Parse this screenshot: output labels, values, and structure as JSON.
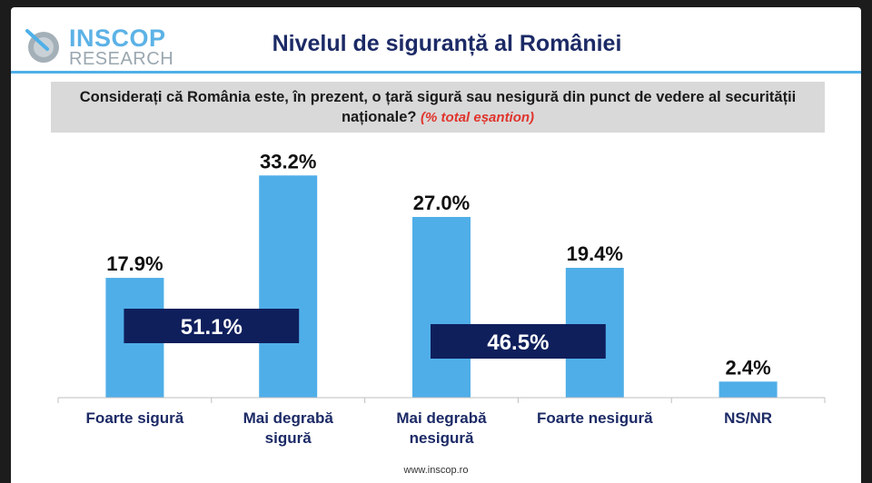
{
  "brand": {
    "name_line1": "INSCOP",
    "name_line2": "RESEARCH",
    "colors": {
      "accent": "#4fb0e8",
      "logo_gray": "#9aa7b0"
    }
  },
  "header": {
    "title": "Nivelul de siguranță al României"
  },
  "question": {
    "text": "Considerați că România este, în prezent, o țară sigură sau nesigură din punct de vedere al securității naționale?",
    "note": "(% total eșantion)"
  },
  "chart_data": {
    "type": "bar",
    "categories": [
      "Foarte sigură",
      "Mai degrabă sigură",
      "Mai degrabă nesigură",
      "Foarte nesigură",
      "NS/NR"
    ],
    "category_lines": [
      [
        "Foarte sigură"
      ],
      [
        "Mai degrabă",
        "sigură"
      ],
      [
        "Mai degrabă",
        "nesigură"
      ],
      [
        "Foarte nesigură"
      ],
      [
        "NS/NR"
      ]
    ],
    "values": [
      17.9,
      33.2,
      27.0,
      19.4,
      2.4
    ],
    "value_labels": [
      "17.9%",
      "33.2%",
      "27.0%",
      "19.4%",
      "2.4%"
    ],
    "ylim": [
      0,
      35
    ],
    "bar_color": "#4faee8",
    "groups": [
      {
        "label": "51.1%",
        "value": 51.1,
        "spans": [
          0,
          1
        ],
        "color": "#0f1f5c"
      },
      {
        "label": "46.5%",
        "value": 46.5,
        "spans": [
          2,
          3
        ],
        "color": "#0f1f5c"
      }
    ]
  },
  "footer": {
    "url": "www.inscop.ro"
  }
}
